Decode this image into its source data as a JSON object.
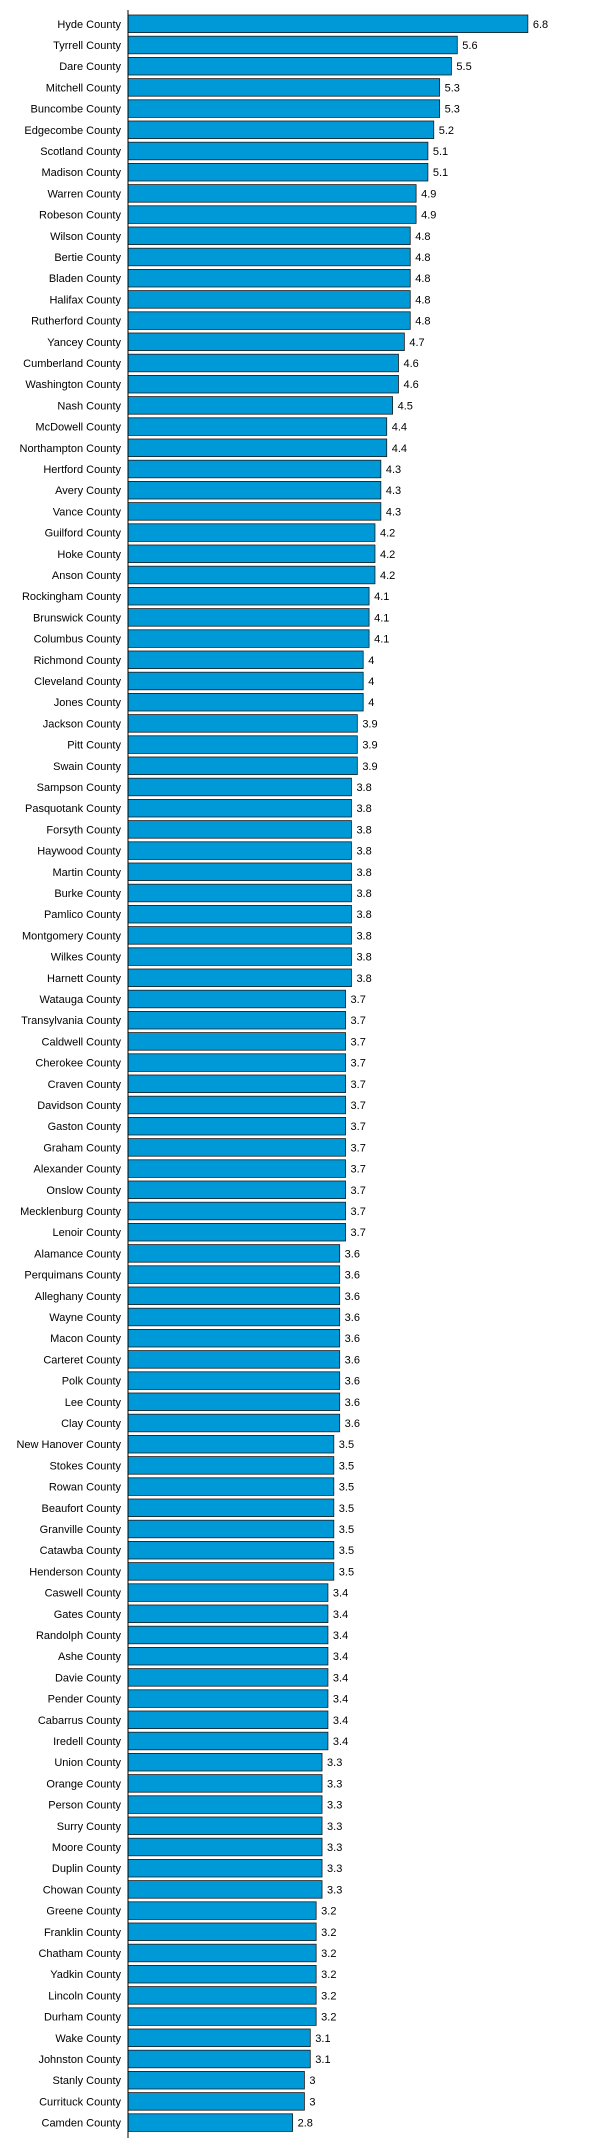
{
  "chart_data": {
    "type": "bar",
    "orientation": "horizontal",
    "bar_color": "#0099d8",
    "bar_stroke": "#1a1a1a",
    "axis_color": "#000000",
    "xlim": [
      0,
      7.5
    ],
    "categories": [
      "Hyde County",
      "Tyrrell County",
      "Dare County",
      "Mitchell County",
      "Buncombe County",
      "Edgecombe County",
      "Scotland County",
      "Madison County",
      "Warren County",
      "Robeson County",
      "Wilson County",
      "Bertie County",
      "Bladen County",
      "Halifax County",
      "Rutherford County",
      "Yancey County",
      "Cumberland County",
      "Washington County",
      "Nash County",
      "McDowell County",
      "Northampton County",
      "Hertford County",
      "Avery County",
      "Vance County",
      "Guilford County",
      "Hoke County",
      "Anson County",
      "Rockingham County",
      "Brunswick County",
      "Columbus County",
      "Richmond County",
      "Cleveland County",
      "Jones County",
      "Jackson County",
      "Pitt County",
      "Swain County",
      "Sampson County",
      "Pasquotank County",
      "Forsyth County",
      "Haywood County",
      "Martin County",
      "Burke County",
      "Pamlico County",
      "Montgomery County",
      "Wilkes County",
      "Harnett County",
      "Watauga County",
      "Transylvania County",
      "Caldwell County",
      "Cherokee County",
      "Craven County",
      "Davidson County",
      "Gaston County",
      "Graham County",
      "Alexander County",
      "Onslow County",
      "Mecklenburg County",
      "Lenoir County",
      "Alamance County",
      "Perquimans County",
      "Alleghany County",
      "Wayne County",
      "Macon County",
      "Carteret County",
      "Polk County",
      "Lee County",
      "Clay County",
      "New Hanover County",
      "Stokes County",
      "Rowan County",
      "Beaufort County",
      "Granville County",
      "Catawba County",
      "Henderson County",
      "Caswell County",
      "Gates County",
      "Randolph County",
      "Ashe County",
      "Davie County",
      "Pender County",
      "Cabarrus County",
      "Iredell County",
      "Union County",
      "Orange County",
      "Person County",
      "Surry County",
      "Moore County",
      "Duplin County",
      "Chowan County",
      "Greene County",
      "Franklin County",
      "Chatham County",
      "Yadkin County",
      "Lincoln County",
      "Durham County",
      "Wake County",
      "Johnston County",
      "Stanly County",
      "Currituck County",
      "Camden County"
    ],
    "values": [
      6.8,
      5.6,
      5.5,
      5.3,
      5.3,
      5.2,
      5.1,
      5.1,
      4.9,
      4.9,
      4.8,
      4.8,
      4.8,
      4.8,
      4.8,
      4.7,
      4.6,
      4.6,
      4.5,
      4.4,
      4.4,
      4.3,
      4.3,
      4.3,
      4.2,
      4.2,
      4.2,
      4.1,
      4.1,
      4.1,
      4,
      4,
      4,
      3.9,
      3.9,
      3.9,
      3.8,
      3.8,
      3.8,
      3.8,
      3.8,
      3.8,
      3.8,
      3.8,
      3.8,
      3.8,
      3.7,
      3.7,
      3.7,
      3.7,
      3.7,
      3.7,
      3.7,
      3.7,
      3.7,
      3.7,
      3.7,
      3.7,
      3.6,
      3.6,
      3.6,
      3.6,
      3.6,
      3.6,
      3.6,
      3.6,
      3.6,
      3.5,
      3.5,
      3.5,
      3.5,
      3.5,
      3.5,
      3.5,
      3.4,
      3.4,
      3.4,
      3.4,
      3.4,
      3.4,
      3.4,
      3.4,
      3.3,
      3.3,
      3.3,
      3.3,
      3.3,
      3.3,
      3.3,
      3.2,
      3.2,
      3.2,
      3.2,
      3.2,
      3.2,
      3.1,
      3.1,
      3,
      3,
      2.8
    ],
    "value_labels": [
      "6.8",
      "5.6",
      "5.5",
      "5.3",
      "5.3",
      "5.2",
      "5.1",
      "5.1",
      "4.9",
      "4.9",
      "4.8",
      "4.8",
      "4.8",
      "4.8",
      "4.8",
      "4.7",
      "4.6",
      "4.6",
      "4.5",
      "4.4",
      "4.4",
      "4.3",
      "4.3",
      "4.3",
      "4.2",
      "4.2",
      "4.2",
      "4.1",
      "4.1",
      "4.1",
      "4",
      "4",
      "4",
      "3.9",
      "3.9",
      "3.9",
      "3.8",
      "3.8",
      "3.8",
      "3.8",
      "3.8",
      "3.8",
      "3.8",
      "3.8",
      "3.8",
      "3.8",
      "3.7",
      "3.7",
      "3.7",
      "3.7",
      "3.7",
      "3.7",
      "3.7",
      "3.7",
      "3.7",
      "3.7",
      "3.7",
      "3.7",
      "3.6",
      "3.6",
      "3.6",
      "3.6",
      "3.6",
      "3.6",
      "3.6",
      "3.6",
      "3.6",
      "3.5",
      "3.5",
      "3.5",
      "3.5",
      "3.5",
      "3.5",
      "3.5",
      "3.4",
      "3.4",
      "3.4",
      "3.4",
      "3.4",
      "3.4",
      "3.4",
      "3.4",
      "3.3",
      "3.3",
      "3.3",
      "3.3",
      "3.3",
      "3.3",
      "3.3",
      "3.2",
      "3.2",
      "3.2",
      "3.2",
      "3.2",
      "3.2",
      "3.1",
      "3.1",
      "3",
      "3",
      "2.8"
    ],
    "title": "",
    "xlabel": "",
    "ylabel": "",
    "grid": false,
    "legend": "none",
    "data_labels": "outside-end"
  }
}
